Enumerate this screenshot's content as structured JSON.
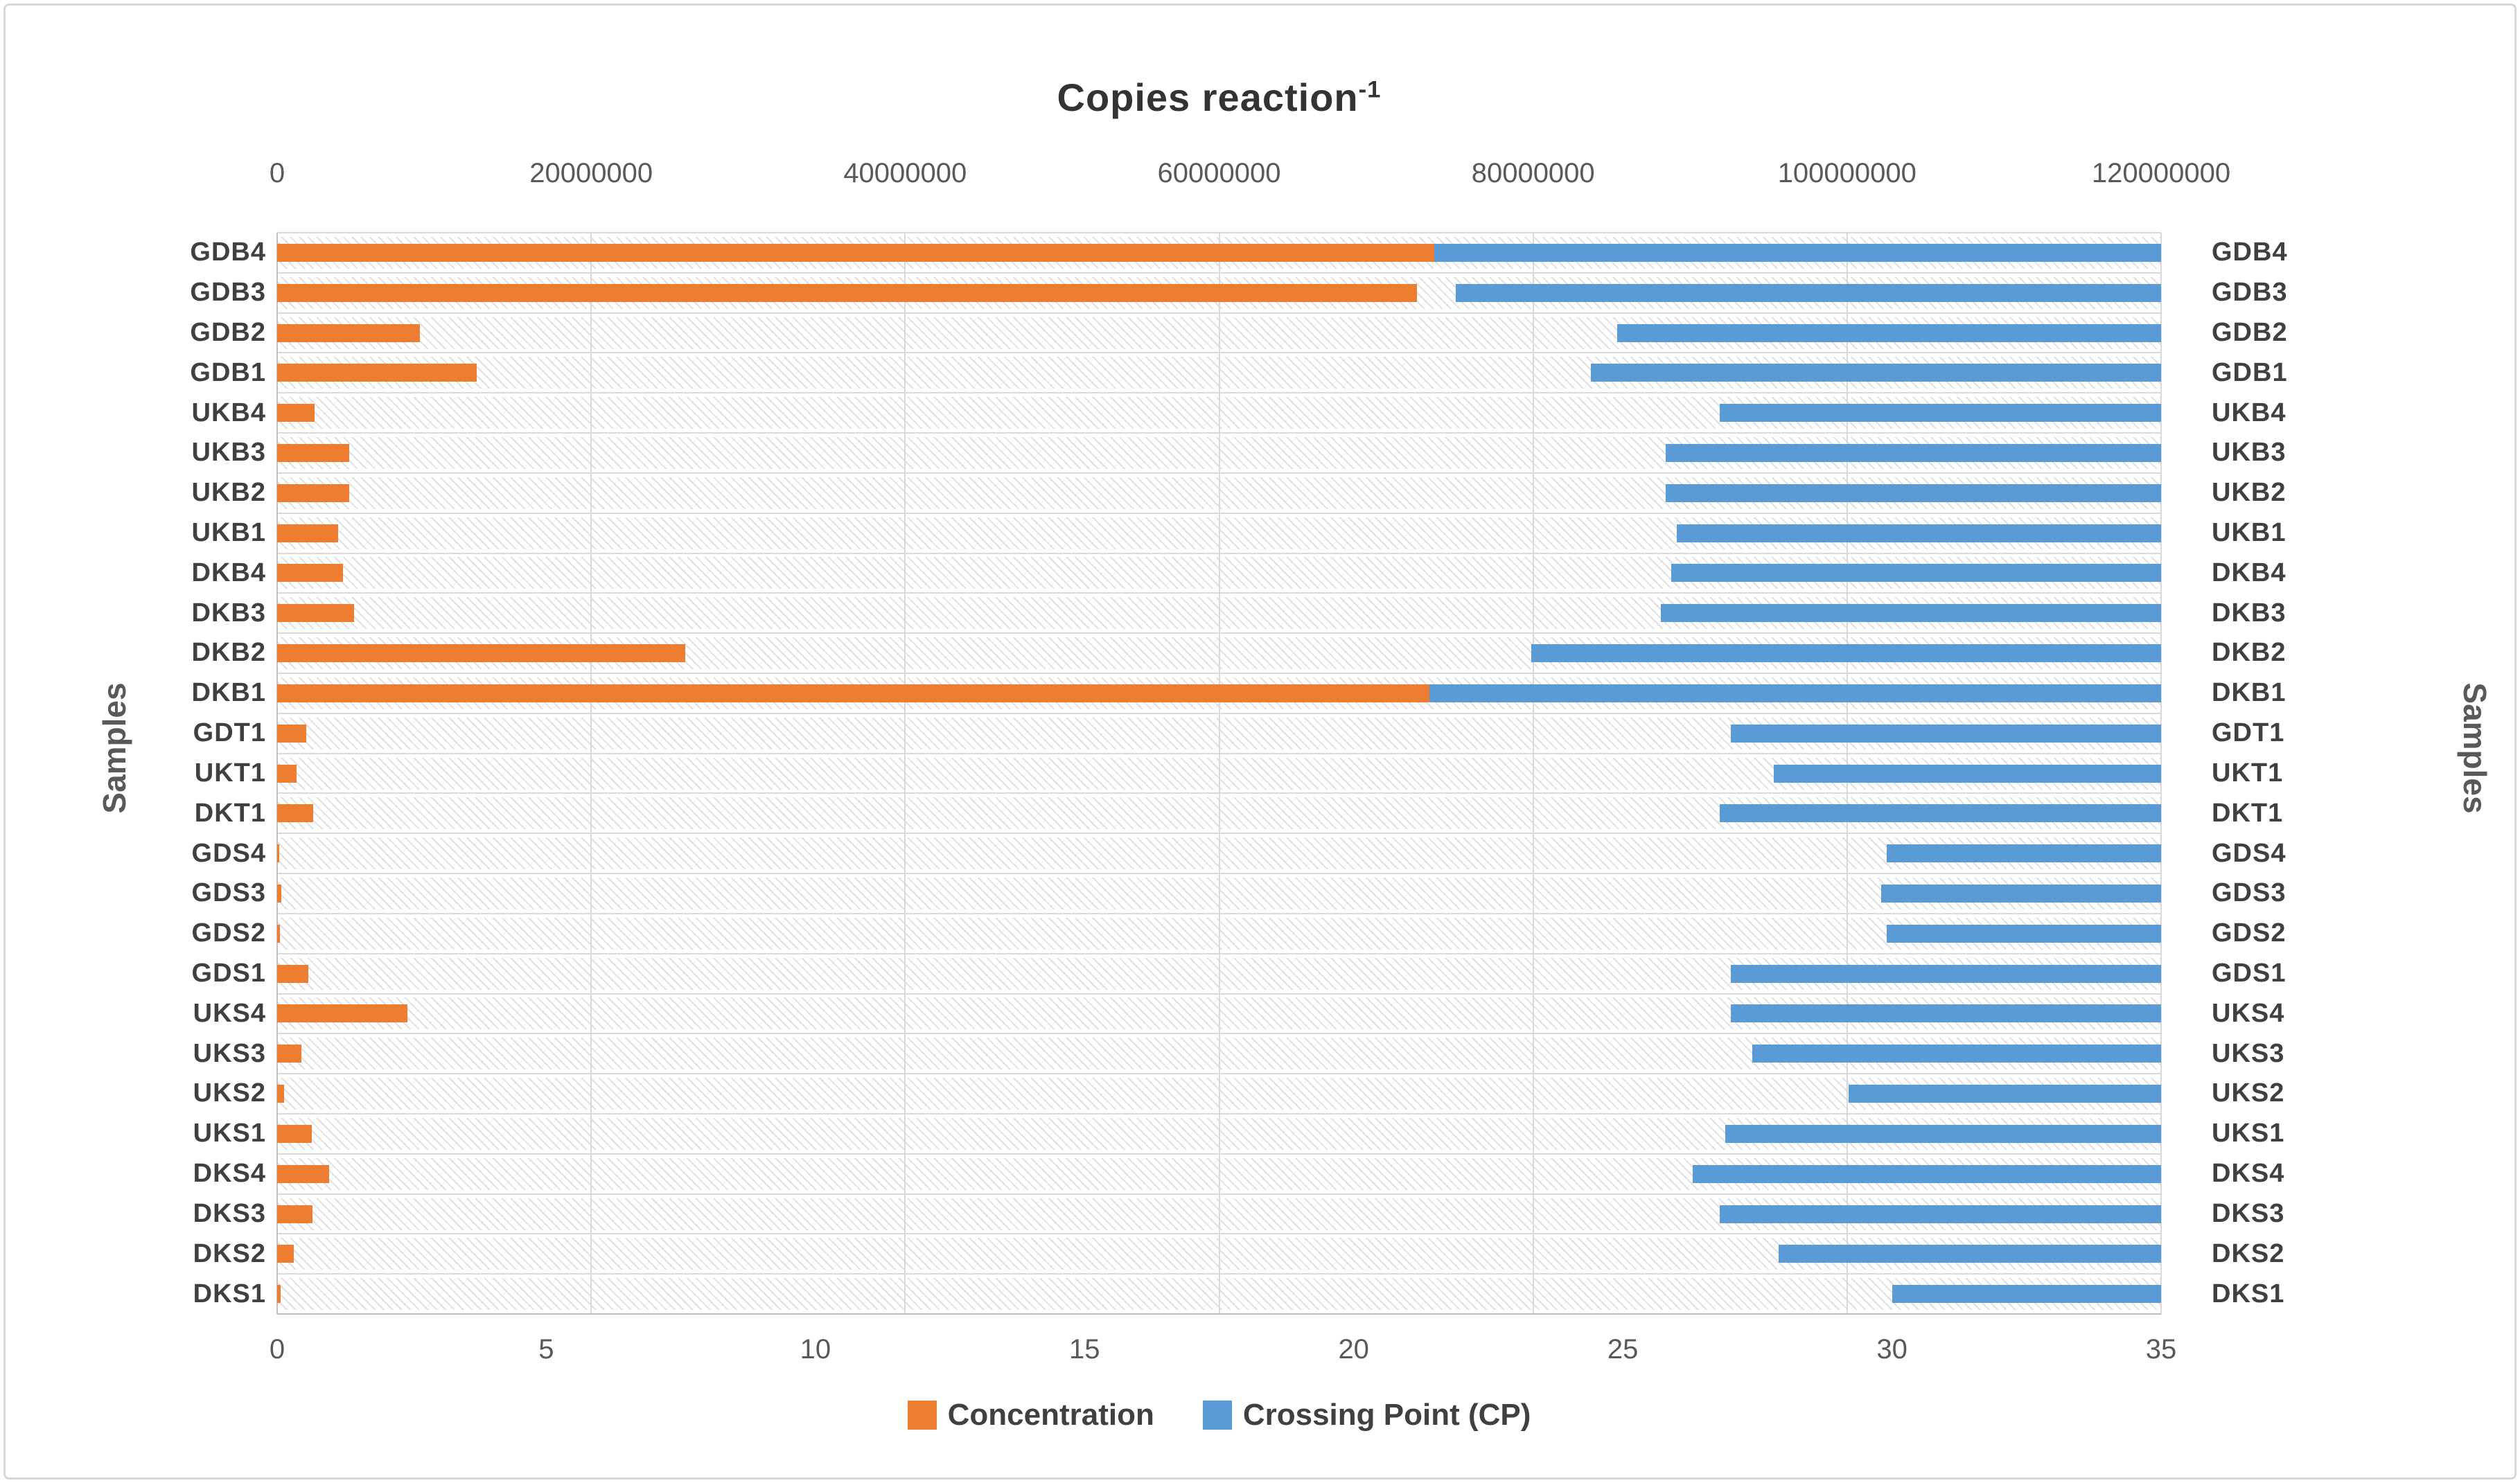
{
  "title": {
    "text": "Copies reaction",
    "sup": "-1"
  },
  "left_axis_label": "Samples",
  "right_axis_label": "Samples",
  "legend": [
    {
      "label": "Concentration",
      "color": "#ED7D31"
    },
    {
      "label": "Crossing Point (CP)",
      "color": "#5B9BD5"
    }
  ],
  "chart_data": {
    "type": "bar",
    "orientation": "horizontal",
    "title": "Copies reaction⁻¹",
    "categories": [
      "GDB4",
      "GDB3",
      "GDB2",
      "GDB1",
      "UKB4",
      "UKB3",
      "UKB2",
      "UKB1",
      "DKB4",
      "DKB3",
      "DKB2",
      "DKB1",
      "GDT1",
      "UKT1",
      "DKT1",
      "GDS4",
      "GDS3",
      "GDS2",
      "GDS1",
      "UKS4",
      "UKS3",
      "UKS2",
      "UKS1",
      "DKS4",
      "DKS3",
      "DKS2",
      "DKS1"
    ],
    "top_axis": {
      "label": "Copies reaction⁻¹",
      "min": 0,
      "max": 120000000,
      "step": 20000000,
      "ticks": [
        "0",
        "20000000",
        "40000000",
        "60000000",
        "80000000",
        "100000000",
        "120000000"
      ]
    },
    "bottom_axis": {
      "min": 0,
      "max": 35,
      "step": 5,
      "ticks": [
        "0",
        "5",
        "10",
        "15",
        "20",
        "25",
        "30",
        "35"
      ]
    },
    "series": [
      {
        "name": "Concentration",
        "axis": "top",
        "color": "#ED7D31",
        "render": "bar from 0 to value",
        "values": [
          73900000,
          72600000,
          9100000,
          12700000,
          2400000,
          4600000,
          4600000,
          3900000,
          4200000,
          4900000,
          26000000,
          73400000,
          1850000,
          1250000,
          2300000,
          150000,
          250000,
          180000,
          2000000,
          8300000,
          1550000,
          450000,
          2200000,
          3300000,
          2250000,
          1050000,
          200000
        ]
      },
      {
        "name": "Crossing Point (CP)",
        "axis": "bottom",
        "color": "#5B9BD5",
        "render": "bar from value to axis max (right-anchored)",
        "values": [
          21.5,
          21.9,
          24.9,
          24.4,
          26.8,
          25.8,
          25.8,
          26.0,
          25.9,
          25.7,
          23.3,
          21.4,
          27.0,
          27.8,
          26.8,
          29.9,
          29.8,
          29.9,
          27.0,
          27.0,
          27.4,
          29.2,
          26.9,
          26.3,
          26.8,
          27.9,
          30.0
        ]
      }
    ],
    "grid": {
      "vertical": "top axis majors every 20000000",
      "horizontal": "category boundaries"
    },
    "legend_position": "bottom",
    "plot_background": "diagonal hatch bands per category row"
  }
}
